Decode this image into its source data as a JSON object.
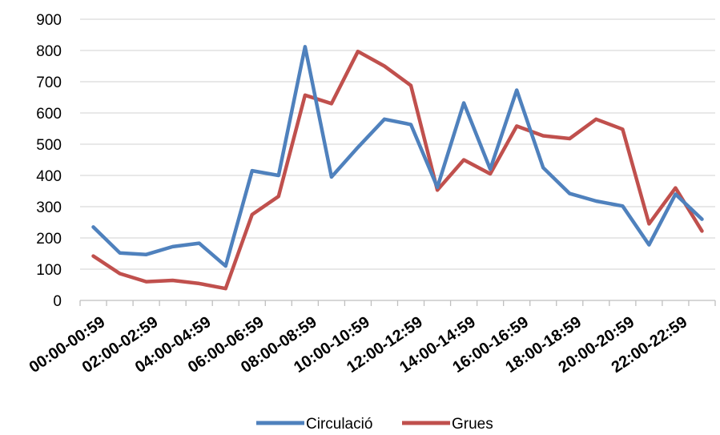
{
  "chart_data": {
    "type": "line",
    "categories": [
      "00:00-00:59",
      "01:00-01:59",
      "02:00-02:59",
      "03:00-03:59",
      "04:00-04:59",
      "05:00-05:59",
      "06:00-06:59",
      "07:00-07:59",
      "08:00-08:59",
      "09:00-09:59",
      "10:00-10:59",
      "11:00-11:59",
      "12:00-12:59",
      "13:00-13:59",
      "14:00-14:59",
      "15:00-15:59",
      "16:00-16:59",
      "17:00-17:59",
      "18:00-18:59",
      "19:00-19:59",
      "20:00-20:59",
      "21:00-21:59",
      "22:00-22:59",
      "23:00-23:59"
    ],
    "tick_labels": [
      "00:00-00:59",
      "02:00-02:59",
      "04:00-04:59",
      "06:00-06:59",
      "08:00-08:59",
      "10:00-10:59",
      "12:00-12:59",
      "14:00-14:59",
      "16:00-16:59",
      "18:00-18:59",
      "20:00-20:59",
      "22:00-22:59"
    ],
    "y_ticks": [
      "0",
      "100",
      "200",
      "300",
      "400",
      "500",
      "600",
      "700",
      "800",
      "900"
    ],
    "ylim": [
      0,
      900
    ],
    "grid": true,
    "legend_position": "bottom",
    "series": [
      {
        "name": "Circulació",
        "color": "#4F81BD",
        "values": [
          235,
          152,
          147,
          172,
          183,
          110,
          415,
          400,
          812,
          395,
          490,
          580,
          563,
          362,
          632,
          420,
          673,
          425,
          342,
          318,
          302,
          178,
          340,
          260
        ]
      },
      {
        "name": "Grues",
        "color": "#C0504D",
        "values": [
          142,
          86,
          60,
          64,
          54,
          38,
          275,
          333,
          657,
          630,
          797,
          750,
          688,
          353,
          450,
          405,
          558,
          527,
          518,
          580,
          548,
          245,
          360,
          222
        ]
      }
    ]
  }
}
